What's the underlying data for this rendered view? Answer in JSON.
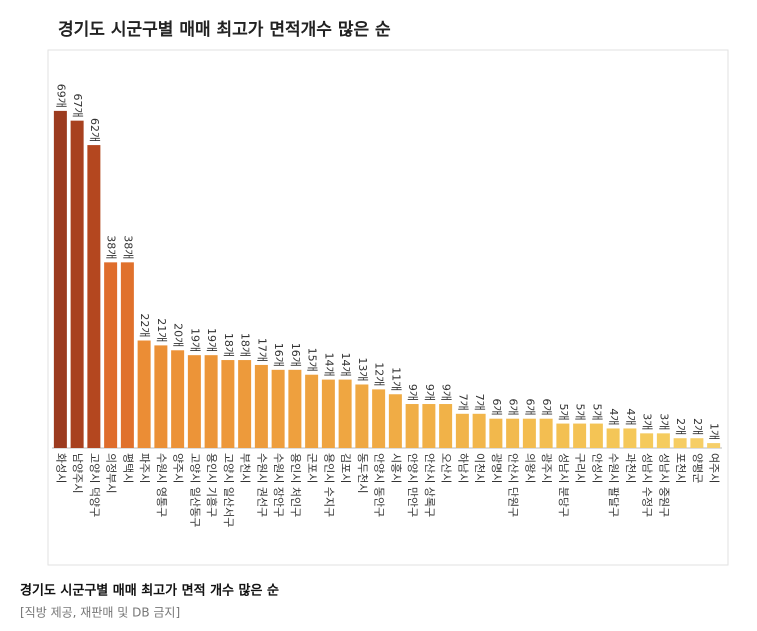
{
  "chart_data": {
    "type": "bar",
    "title": "경기도 시군구별 매매 최고가 면적개수 많은 순",
    "caption": "경기도 시군구별 매매 최고가 면적 개수 많은 순",
    "source": "[직방 제공, 재판매 및 DB 금지]",
    "categories": [
      "화성시",
      "남양주시",
      "고양시 덕양구",
      "의정부시",
      "평택시",
      "파주시",
      "수원시 영통구",
      "양주시",
      "고양시 일산동구",
      "용인시 기흥구",
      "고양시 일산서구",
      "부천시",
      "수원시 권선구",
      "수원시 장안구",
      "용인시 처인구",
      "군포시",
      "용인시 수지구",
      "김포시",
      "동두천시",
      "안양시 동안구",
      "시흥시",
      "안양시 만안구",
      "안산시 상록구",
      "오산시",
      "하남시",
      "이천시",
      "광명시",
      "안산시 단원구",
      "의왕시",
      "광주시",
      "성남시 분당구",
      "구리시",
      "안성시",
      "수원시 팔달구",
      "과천시",
      "성남시 수정구",
      "성남시 중원구",
      "포천시",
      "양평군",
      "여주시"
    ],
    "values": [
      69,
      67,
      62,
      38,
      38,
      22,
      21,
      20,
      19,
      19,
      18,
      18,
      17,
      16,
      16,
      15,
      14,
      14,
      13,
      12,
      11,
      9,
      9,
      9,
      7,
      7,
      6,
      6,
      6,
      6,
      5,
      5,
      5,
      4,
      4,
      3,
      3,
      2,
      2,
      1
    ],
    "value_labels": [
      "69개",
      "67개",
      "62개",
      "38개",
      "38개",
      "22개",
      "21개",
      "20개",
      "19개",
      "19개",
      "18개",
      "18개",
      "17개",
      "16개",
      "16개",
      "15개",
      "14개",
      "14개",
      "13개",
      "12개",
      "11개",
      "9개",
      "9개",
      "9개",
      "7개",
      "7개",
      "6개",
      "6개",
      "6개",
      "6개",
      "5개",
      "5개",
      "5개",
      "4개",
      "4개",
      "3개",
      "3개",
      "2개",
      "2개",
      "1개"
    ],
    "colors": [
      "#9c3b1f",
      "#a8411f",
      "#b4471f",
      "#df6d2c",
      "#e0712c",
      "#eb8d35",
      "#eb9036",
      "#ec9237",
      "#ec9438",
      "#ec9639",
      "#ed983a",
      "#ed9a3b",
      "#ed9c3c",
      "#ee9e3d",
      "#eea03e",
      "#eea23f",
      "#efa440",
      "#efa641",
      "#efa842",
      "#f0aa44",
      "#f0ac45",
      "#f0ae46",
      "#f1b047",
      "#f1b248",
      "#f1b44a",
      "#f2b64b",
      "#f2b84c",
      "#f2ba4e",
      "#f3bc4f",
      "#f3be51",
      "#f3c052",
      "#f4c254",
      "#f4c455",
      "#f4c657",
      "#f5c859",
      "#f5ca5c",
      "#f5cc5f",
      "#f6cd63",
      "#f6ce66",
      "#f6cf6a"
    ],
    "ylim": [
      0,
      70
    ]
  }
}
